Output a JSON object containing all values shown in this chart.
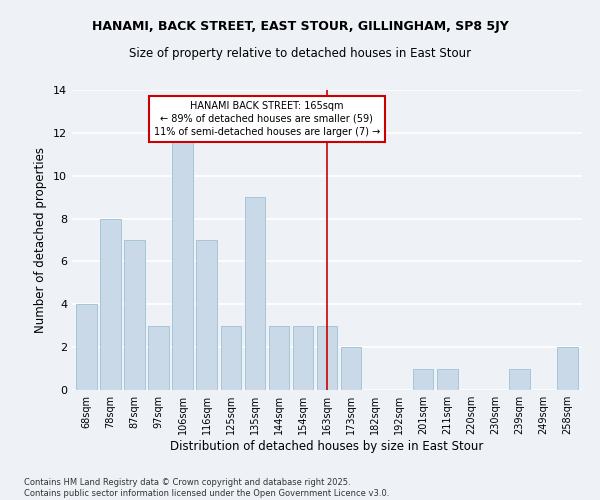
{
  "title": "HANAMI, BACK STREET, EAST STOUR, GILLINGHAM, SP8 5JY",
  "subtitle": "Size of property relative to detached houses in East Stour",
  "xlabel": "Distribution of detached houses by size in East Stour",
  "ylabel": "Number of detached properties",
  "categories": [
    "68sqm",
    "78sqm",
    "87sqm",
    "97sqm",
    "106sqm",
    "116sqm",
    "125sqm",
    "135sqm",
    "144sqm",
    "154sqm",
    "163sqm",
    "173sqm",
    "182sqm",
    "192sqm",
    "201sqm",
    "211sqm",
    "220sqm",
    "230sqm",
    "239sqm",
    "249sqm",
    "258sqm"
  ],
  "values": [
    4,
    8,
    7,
    3,
    12,
    7,
    3,
    9,
    3,
    3,
    3,
    2,
    0,
    0,
    1,
    1,
    0,
    0,
    1,
    0,
    2
  ],
  "bar_color": "#c9d9e8",
  "bar_edge_color": "#a8c4d8",
  "ylim": [
    0,
    14
  ],
  "yticks": [
    0,
    2,
    4,
    6,
    8,
    10,
    12,
    14
  ],
  "property_bin": 10,
  "annotation_text": "HANAMI BACK STREET: 165sqm\n← 89% of detached houses are smaller (59)\n11% of semi-detached houses are larger (7) →",
  "annotation_box_color": "#ffffff",
  "annotation_box_edge_color": "#cc0000",
  "red_line_color": "#cc0000",
  "footer": "Contains HM Land Registry data © Crown copyright and database right 2025.\nContains public sector information licensed under the Open Government Licence v3.0.",
  "background_color": "#eef2f7",
  "grid_color": "#ffffff",
  "title_fontsize": 9,
  "subtitle_fontsize": 8.5,
  "ylabel_fontsize": 8.5,
  "xlabel_fontsize": 8.5,
  "tick_fontsize": 7,
  "annotation_fontsize": 7,
  "footer_fontsize": 6
}
